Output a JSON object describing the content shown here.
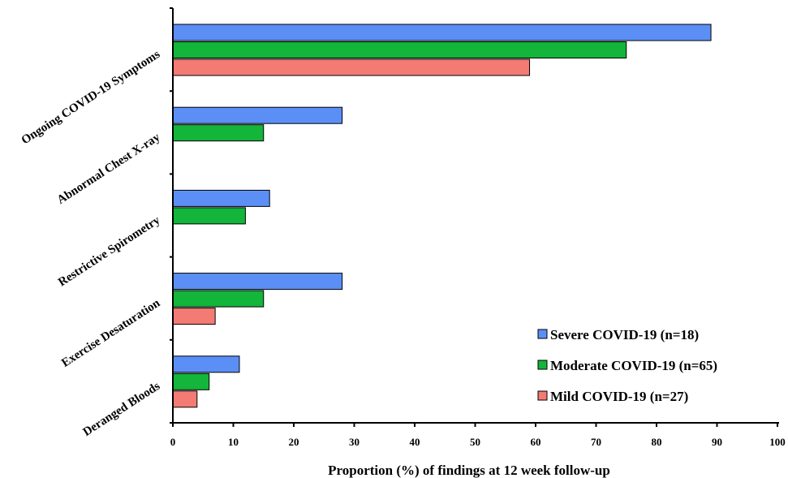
{
  "chart_data": {
    "type": "bar",
    "orientation": "horizontal",
    "categories": [
      "Ongoing COVID-19 Symptoms",
      "Abnormal Chest X-ray",
      "Restrictive Spirometry",
      "Exercise Desaturation",
      "Deranged Bloods"
    ],
    "series": [
      {
        "name": "Severe COVID-19 (n=18)",
        "color": "#5b8ff5",
        "values": [
          89,
          28,
          16,
          28,
          11
        ]
      },
      {
        "name": "Moderate COVID-19 (n=65)",
        "color": "#13b53a",
        "values": [
          75,
          15,
          12,
          15,
          6
        ]
      },
      {
        "name": "Mild COVID-19 (n=27)",
        "color": "#f47a74",
        "values": [
          59,
          null,
          null,
          7,
          4
        ]
      }
    ],
    "xlabel": "Proportion (%) of findings at 12 week follow-up",
    "ylabel": "",
    "xlim": [
      0,
      100
    ],
    "xticks": [
      "0",
      "10",
      "20",
      "30",
      "40",
      "50",
      "60",
      "70",
      "80",
      "90",
      "100"
    ],
    "grid": false,
    "legend_position": "bottom-right"
  }
}
